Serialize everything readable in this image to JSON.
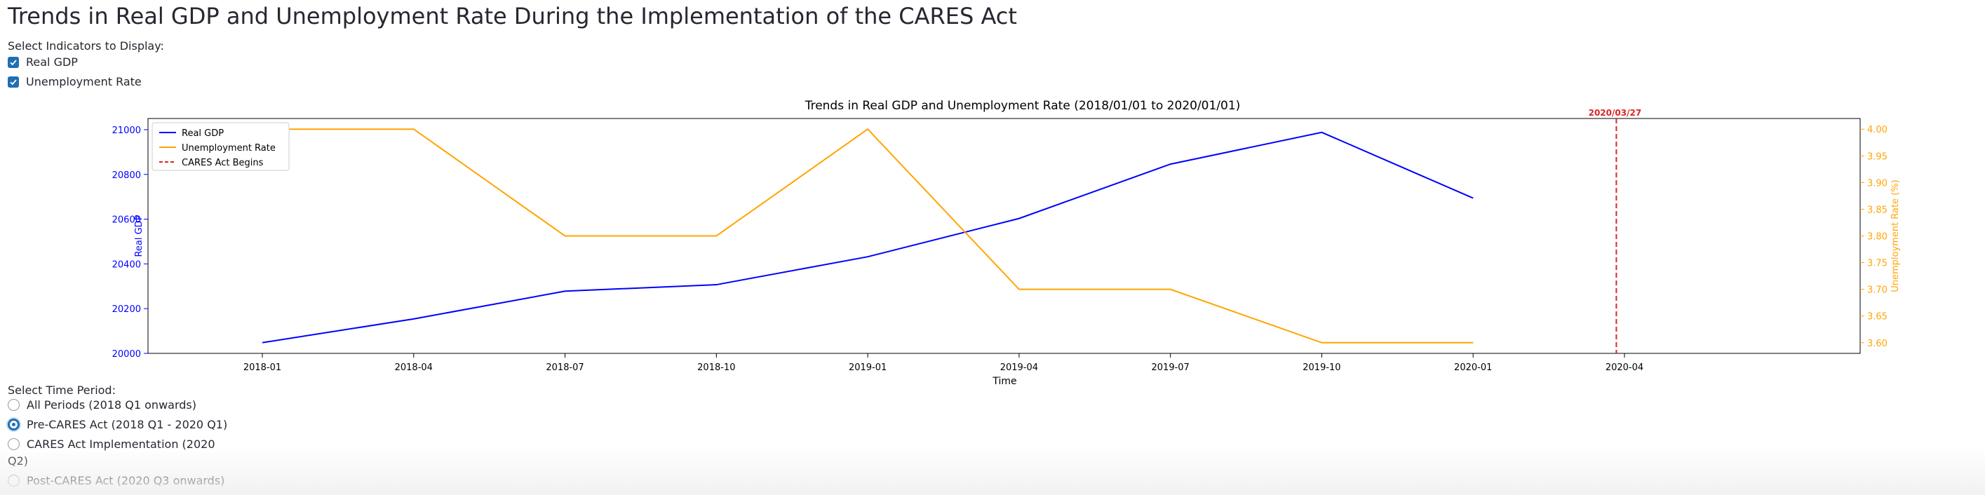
{
  "page": {
    "title": "Trends in Real GDP and Unemployment Rate During the Implementation of the CARES Act"
  },
  "indicators": {
    "label": "Select Indicators to Display:",
    "options": [
      {
        "label": "Real GDP",
        "checked": true
      },
      {
        "label": "Unemployment Rate",
        "checked": true
      }
    ]
  },
  "period": {
    "label": "Select Time Period:",
    "options": [
      {
        "label": "All Periods (2018 Q1 onwards)",
        "selected": false
      },
      {
        "label": "Pre-CARES Act (2018 Q1 - 2020 Q1)",
        "selected": true
      },
      {
        "label": "CARES Act Implementation (2020",
        "label_cont": "Q2)",
        "selected": false
      },
      {
        "label": "Post-CARES Act (2020 Q3 onwards)",
        "selected": false
      }
    ]
  },
  "colors": {
    "gdp": "#0000ff",
    "unemployment": "#ffa500",
    "cares_line": "#d62728",
    "checkbox_accent": "#1f6fb2"
  },
  "chart_data": {
    "type": "line",
    "title": "Trends in Real GDP and Unemployment Rate (2018/01/01 to 2020/01/01)",
    "xlabel": "Time",
    "x": [
      "2018-01",
      "2018-04",
      "2018-07",
      "2018-10",
      "2019-01",
      "2019-04",
      "2019-07",
      "2019-10",
      "2020-01"
    ],
    "x_ticks": [
      "2018-01",
      "2018-04",
      "2018-07",
      "2018-10",
      "2019-01",
      "2019-04",
      "2019-07",
      "2019-10",
      "2020-01",
      "2020-04"
    ],
    "series": [
      {
        "name": "Real GDP",
        "axis": "left",
        "values": [
          20048,
          20154,
          20278,
          20307,
          20432,
          20603,
          20846,
          20988,
          20694
        ]
      },
      {
        "name": "Unemployment Rate",
        "axis": "right",
        "values": [
          4.0,
          4.0,
          3.8,
          3.8,
          4.0,
          3.7,
          3.7,
          3.6,
          3.6
        ]
      }
    ],
    "y_left": {
      "label": "Real GDP",
      "lim": [
        20000,
        21050
      ],
      "ticks": [
        "20000",
        "20200",
        "20400",
        "20600",
        "20800",
        "21000"
      ]
    },
    "y_right": {
      "label": "Unemployment Rate (%)",
      "lim": [
        3.58,
        4.02
      ],
      "ticks": [
        "3.60",
        "3.65",
        "3.70",
        "3.75",
        "3.80",
        "3.85",
        "3.90",
        "3.95",
        "4.00"
      ]
    },
    "event": {
      "x": "2020-03-27",
      "name": "CARES Act Begins",
      "label": "2020/03/27"
    },
    "legend": {
      "placement": "top-left",
      "entries": [
        "Real GDP",
        "Unemployment Rate",
        "CARES Act Begins"
      ]
    },
    "grid": false
  }
}
